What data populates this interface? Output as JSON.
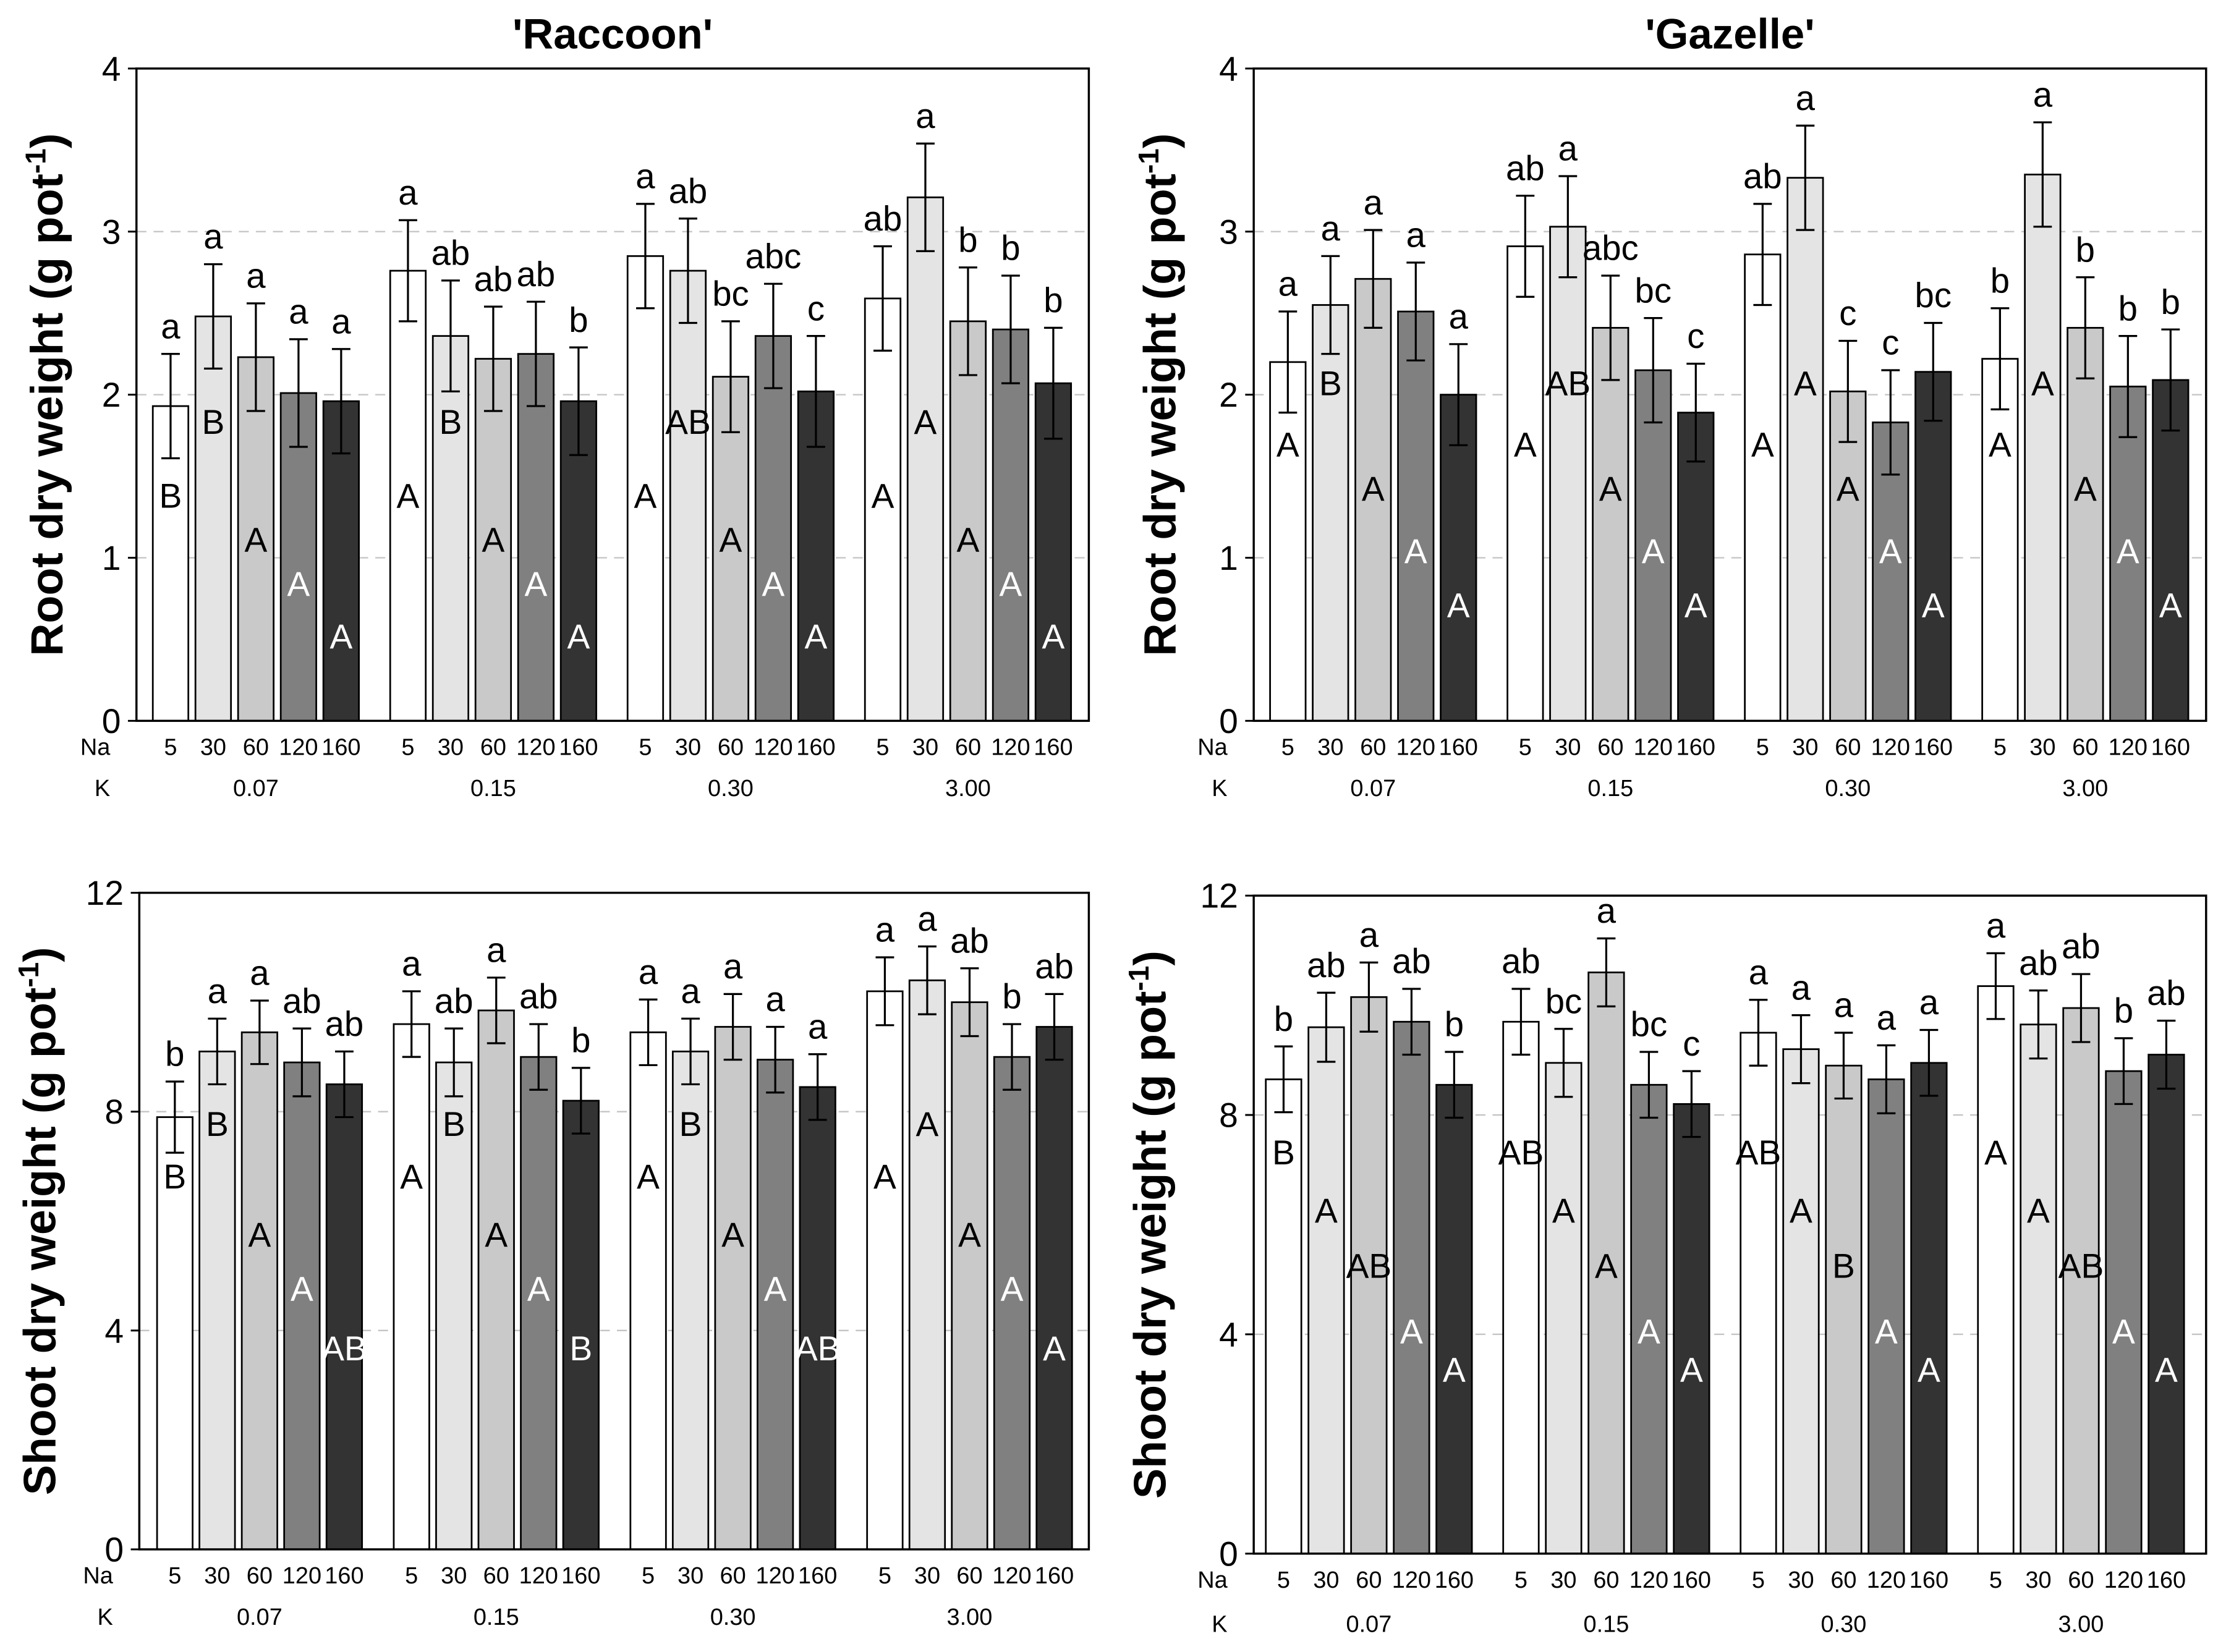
{
  "series_colors": [
    "#ffffff",
    "#e4e4e4",
    "#c9c9c9",
    "#808080",
    "#333333"
  ],
  "chart_data": [
    {
      "type": "bar",
      "title": "'Raccoon'",
      "ylabel": {
        "main": "Root dry weight (g pot",
        "sup": "-1",
        "end": ")"
      },
      "ylim": [
        0,
        4
      ],
      "yticks": [
        0,
        1,
        2,
        3,
        4
      ],
      "grid": true,
      "row_labels": {
        "na": "Na",
        "k": "K"
      },
      "groups": [
        {
          "k": "0.07",
          "bars": [
            {
              "na": "5",
              "value": 1.93,
              "err": 0.32,
              "lower": "a",
              "upper": "B"
            },
            {
              "na": "30",
              "value": 2.48,
              "err": 0.32,
              "lower": "a",
              "upper": "B"
            },
            {
              "na": "60",
              "value": 2.23,
              "err": 0.33,
              "lower": "a",
              "upper": "A"
            },
            {
              "na": "120",
              "value": 2.01,
              "err": 0.33,
              "lower": "a",
              "upper": "A"
            },
            {
              "na": "160",
              "value": 1.96,
              "err": 0.32,
              "lower": "a",
              "upper": "A"
            }
          ]
        },
        {
          "k": "0.15",
          "bars": [
            {
              "na": "5",
              "value": 2.76,
              "err": 0.31,
              "lower": "a",
              "upper": "A"
            },
            {
              "na": "30",
              "value": 2.36,
              "err": 0.34,
              "lower": "ab",
              "upper": "B"
            },
            {
              "na": "60",
              "value": 2.22,
              "err": 0.32,
              "lower": "ab",
              "upper": "A"
            },
            {
              "na": "120",
              "value": 2.25,
              "err": 0.32,
              "lower": "ab",
              "upper": "A"
            },
            {
              "na": "160",
              "value": 1.96,
              "err": 0.33,
              "lower": "b",
              "upper": "A"
            }
          ]
        },
        {
          "k": "0.30",
          "bars": [
            {
              "na": "5",
              "value": 2.85,
              "err": 0.32,
              "lower": "a",
              "upper": "A"
            },
            {
              "na": "30",
              "value": 2.76,
              "err": 0.32,
              "lower": "ab",
              "upper": "AB"
            },
            {
              "na": "60",
              "value": 2.11,
              "err": 0.34,
              "lower": "bc",
              "upper": "A"
            },
            {
              "na": "120",
              "value": 2.36,
              "err": 0.32,
              "lower": "abc",
              "upper": "A"
            },
            {
              "na": "160",
              "value": 2.02,
              "err": 0.34,
              "lower": "c",
              "upper": "A"
            }
          ]
        },
        {
          "k": "3.00",
          "bars": [
            {
              "na": "5",
              "value": 2.59,
              "err": 0.32,
              "lower": "ab",
              "upper": "A"
            },
            {
              "na": "30",
              "value": 3.21,
              "err": 0.33,
              "lower": "a",
              "upper": "A"
            },
            {
              "na": "60",
              "value": 2.45,
              "err": 0.33,
              "lower": "b",
              "upper": "A"
            },
            {
              "na": "120",
              "value": 2.4,
              "err": 0.33,
              "lower": "b",
              "upper": "A"
            },
            {
              "na": "160",
              "value": 2.07,
              "err": 0.34,
              "lower": "b",
              "upper": "A"
            }
          ]
        }
      ]
    },
    {
      "type": "bar",
      "title": "'Gazelle'",
      "ylabel": {
        "main": "Root dry weight (g pot",
        "sup": "-1",
        "end": ")"
      },
      "ylim": [
        0,
        4
      ],
      "yticks": [
        0,
        1,
        2,
        3,
        4
      ],
      "grid": true,
      "row_labels": {
        "na": "Na",
        "k": "K"
      },
      "groups": [
        {
          "k": "0.07",
          "bars": [
            {
              "na": "5",
              "value": 2.2,
              "err": 0.31,
              "lower": "a",
              "upper": "A"
            },
            {
              "na": "30",
              "value": 2.55,
              "err": 0.3,
              "lower": "a",
              "upper": "B"
            },
            {
              "na": "60",
              "value": 2.71,
              "err": 0.3,
              "lower": "a",
              "upper": "A"
            },
            {
              "na": "120",
              "value": 2.51,
              "err": 0.3,
              "lower": "a",
              "upper": "A"
            },
            {
              "na": "160",
              "value": 2.0,
              "err": 0.31,
              "lower": "a",
              "upper": "A"
            }
          ]
        },
        {
          "k": "0.15",
          "bars": [
            {
              "na": "5",
              "value": 2.91,
              "err": 0.31,
              "lower": "ab",
              "upper": "A"
            },
            {
              "na": "30",
              "value": 3.03,
              "err": 0.31,
              "lower": "a",
              "upper": "AB"
            },
            {
              "na": "60",
              "value": 2.41,
              "err": 0.32,
              "lower": "abc",
              "upper": "A"
            },
            {
              "na": "120",
              "value": 2.15,
              "err": 0.32,
              "lower": "bc",
              "upper": "A"
            },
            {
              "na": "160",
              "value": 1.89,
              "err": 0.3,
              "lower": "c",
              "upper": "A"
            }
          ]
        },
        {
          "k": "0.30",
          "bars": [
            {
              "na": "5",
              "value": 2.86,
              "err": 0.31,
              "lower": "ab",
              "upper": "A"
            },
            {
              "na": "30",
              "value": 3.33,
              "err": 0.32,
              "lower": "a",
              "upper": "A"
            },
            {
              "na": "60",
              "value": 2.02,
              "err": 0.31,
              "lower": "c",
              "upper": "A"
            },
            {
              "na": "120",
              "value": 1.83,
              "err": 0.32,
              "lower": "c",
              "upper": "A"
            },
            {
              "na": "160",
              "value": 2.14,
              "err": 0.3,
              "lower": "bc",
              "upper": "A"
            }
          ]
        },
        {
          "k": "3.00",
          "bars": [
            {
              "na": "5",
              "value": 2.22,
              "err": 0.31,
              "lower": "b",
              "upper": "A"
            },
            {
              "na": "30",
              "value": 3.35,
              "err": 0.32,
              "lower": "a",
              "upper": "A"
            },
            {
              "na": "60",
              "value": 2.41,
              "err": 0.31,
              "lower": "b",
              "upper": "A"
            },
            {
              "na": "120",
              "value": 2.05,
              "err": 0.31,
              "lower": "b",
              "upper": "A"
            },
            {
              "na": "160",
              "value": 2.09,
              "err": 0.31,
              "lower": "b",
              "upper": "A"
            }
          ]
        }
      ]
    },
    {
      "type": "bar",
      "ylabel": {
        "main": "Shoot dry weight (g pot",
        "sup": "-1",
        "end": ")"
      },
      "ylim": [
        0,
        12
      ],
      "yticks": [
        0,
        4,
        8,
        12
      ],
      "grid": true,
      "row_labels": {
        "na": "Na",
        "k": "K"
      },
      "groups": [
        {
          "k": "0.07",
          "bars": [
            {
              "na": "5",
              "value": 7.9,
              "err": 0.65,
              "lower": "b",
              "upper": "B"
            },
            {
              "na": "30",
              "value": 9.1,
              "err": 0.6,
              "lower": "a",
              "upper": "B"
            },
            {
              "na": "60",
              "value": 9.45,
              "err": 0.58,
              "lower": "a",
              "upper": "A"
            },
            {
              "na": "120",
              "value": 8.9,
              "err": 0.62,
              "lower": "ab",
              "upper": "A"
            },
            {
              "na": "160",
              "value": 8.5,
              "err": 0.6,
              "lower": "ab",
              "upper": "AB"
            }
          ]
        },
        {
          "k": "0.15",
          "bars": [
            {
              "na": "5",
              "value": 9.6,
              "err": 0.6,
              "lower": "a",
              "upper": "A"
            },
            {
              "na": "30",
              "value": 8.9,
              "err": 0.62,
              "lower": "ab",
              "upper": "B"
            },
            {
              "na": "60",
              "value": 9.85,
              "err": 0.6,
              "lower": "a",
              "upper": "A"
            },
            {
              "na": "120",
              "value": 9.0,
              "err": 0.6,
              "lower": "ab",
              "upper": "A"
            },
            {
              "na": "160",
              "value": 8.2,
              "err": 0.6,
              "lower": "b",
              "upper": "B"
            }
          ]
        },
        {
          "k": "0.30",
          "bars": [
            {
              "na": "5",
              "value": 9.45,
              "err": 0.6,
              "lower": "a",
              "upper": "A"
            },
            {
              "na": "30",
              "value": 9.1,
              "err": 0.6,
              "lower": "a",
              "upper": "B"
            },
            {
              "na": "60",
              "value": 9.55,
              "err": 0.6,
              "lower": "a",
              "upper": "A"
            },
            {
              "na": "120",
              "value": 8.95,
              "err": 0.6,
              "lower": "a",
              "upper": "A"
            },
            {
              "na": "160",
              "value": 8.45,
              "err": 0.6,
              "lower": "a",
              "upper": "AB"
            }
          ]
        },
        {
          "k": "3.00",
          "bars": [
            {
              "na": "5",
              "value": 10.2,
              "err": 0.62,
              "lower": "a",
              "upper": "A"
            },
            {
              "na": "30",
              "value": 10.4,
              "err": 0.62,
              "lower": "a",
              "upper": "A"
            },
            {
              "na": "60",
              "value": 10.0,
              "err": 0.62,
              "lower": "ab",
              "upper": "A"
            },
            {
              "na": "120",
              "value": 9.0,
              "err": 0.6,
              "lower": "b",
              "upper": "A"
            },
            {
              "na": "160",
              "value": 9.55,
              "err": 0.6,
              "lower": "ab",
              "upper": "A"
            }
          ]
        }
      ]
    },
    {
      "type": "bar",
      "ylabel": {
        "main": "Shoot dry weight (g pot",
        "sup": "-1",
        "end": ")"
      },
      "ylim": [
        0,
        12
      ],
      "yticks": [
        0,
        4,
        8,
        12
      ],
      "grid": true,
      "row_labels": {
        "na": "Na",
        "k": "K"
      },
      "groups": [
        {
          "k": "0.07",
          "bars": [
            {
              "na": "5",
              "value": 8.65,
              "err": 0.6,
              "lower": "b",
              "upper": "B"
            },
            {
              "na": "30",
              "value": 9.6,
              "err": 0.63,
              "lower": "ab",
              "upper": "A"
            },
            {
              "na": "60",
              "value": 10.15,
              "err": 0.63,
              "lower": "a",
              "upper": "AB"
            },
            {
              "na": "120",
              "value": 9.7,
              "err": 0.6,
              "lower": "ab",
              "upper": "A"
            },
            {
              "na": "160",
              "value": 8.55,
              "err": 0.6,
              "lower": "b",
              "upper": "A"
            }
          ]
        },
        {
          "k": "0.15",
          "bars": [
            {
              "na": "5",
              "value": 9.7,
              "err": 0.6,
              "lower": "ab",
              "upper": "AB"
            },
            {
              "na": "30",
              "value": 8.95,
              "err": 0.62,
              "lower": "bc",
              "upper": "A"
            },
            {
              "na": "60",
              "value": 10.6,
              "err": 0.62,
              "lower": "a",
              "upper": "A"
            },
            {
              "na": "120",
              "value": 8.55,
              "err": 0.6,
              "lower": "bc",
              "upper": "A"
            },
            {
              "na": "160",
              "value": 8.2,
              "err": 0.6,
              "lower": "c",
              "upper": "A"
            }
          ]
        },
        {
          "k": "0.30",
          "bars": [
            {
              "na": "5",
              "value": 9.5,
              "err": 0.6,
              "lower": "a",
              "upper": "AB"
            },
            {
              "na": "30",
              "value": 9.2,
              "err": 0.62,
              "lower": "a",
              "upper": "A"
            },
            {
              "na": "60",
              "value": 8.9,
              "err": 0.6,
              "lower": "a",
              "upper": "B"
            },
            {
              "na": "120",
              "value": 8.65,
              "err": 0.62,
              "lower": "a",
              "upper": "A"
            },
            {
              "na": "160",
              "value": 8.95,
              "err": 0.6,
              "lower": "a",
              "upper": "A"
            }
          ]
        },
        {
          "k": "3.00",
          "bars": [
            {
              "na": "5",
              "value": 10.35,
              "err": 0.6,
              "lower": "a",
              "upper": "A"
            },
            {
              "na": "30",
              "value": 9.65,
              "err": 0.62,
              "lower": "ab",
              "upper": "A"
            },
            {
              "na": "60",
              "value": 9.95,
              "err": 0.62,
              "lower": "ab",
              "upper": "AB"
            },
            {
              "na": "120",
              "value": 8.8,
              "err": 0.6,
              "lower": "b",
              "upper": "A"
            },
            {
              "na": "160",
              "value": 9.1,
              "err": 0.62,
              "lower": "ab",
              "upper": "A"
            }
          ]
        }
      ]
    }
  ]
}
